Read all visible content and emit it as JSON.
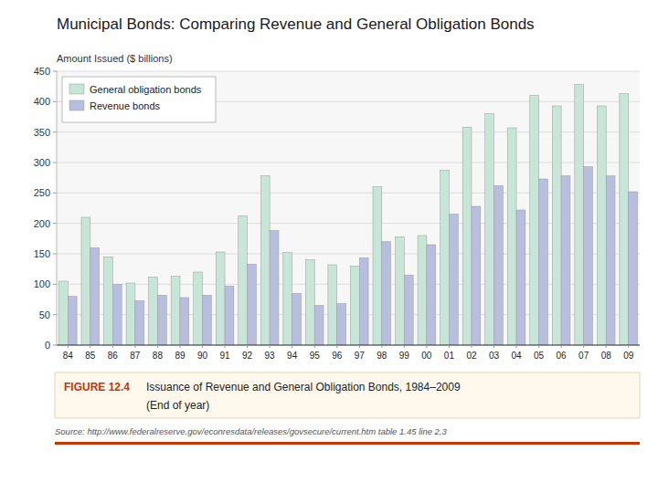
{
  "chart_data": {
    "type": "bar",
    "title": "Municipal Bonds: Comparing Revenue and General Obligation Bonds",
    "y_label": "Amount Issued ($ billions)",
    "categories": [
      "84",
      "85",
      "86",
      "87",
      "88",
      "89",
      "90",
      "91",
      "92",
      "93",
      "94",
      "95",
      "96",
      "97",
      "98",
      "99",
      "00",
      "01",
      "02",
      "03",
      "04",
      "05",
      "06",
      "07",
      "08",
      "09"
    ],
    "series": [
      {
        "name": "General obligation bonds",
        "color": "#c8e6d8",
        "values": [
          105,
          210,
          145,
          102,
          112,
          113,
          120,
          153,
          212,
          278,
          152,
          140,
          132,
          130,
          260,
          178,
          180,
          287,
          358,
          380,
          357,
          410,
          393,
          428,
          393,
          413
        ]
      },
      {
        "name": "Revenue bonds",
        "color": "#b8bedd",
        "values": [
          80,
          160,
          100,
          73,
          82,
          78,
          82,
          97,
          133,
          188,
          85,
          65,
          68,
          143,
          170,
          115,
          165,
          215,
          228,
          262,
          222,
          273,
          278,
          293,
          278,
          252
        ]
      }
    ],
    "ylim": [
      0,
      450
    ],
    "yticks": [
      0,
      50,
      100,
      150,
      200,
      250,
      300,
      350,
      400,
      450
    ],
    "grid": true,
    "legend": "upper-left",
    "annotations": [
      "FIGURE 12.4",
      "Issuance of Revenue and General Obligation Bonds, 1984–2009",
      "(End of year)",
      "Source: http://www.federalreserve.gov/econresdata/releases/govsecure/current.htm  table 1.45 line 2,3"
    ]
  }
}
